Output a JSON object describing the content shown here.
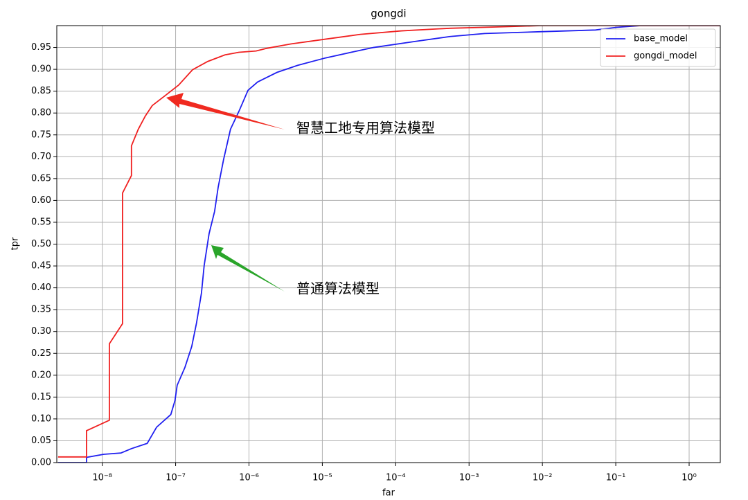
{
  "chart_data": {
    "type": "line",
    "title": "gongdi",
    "x_label": "far",
    "y_label": "tpr",
    "xscale": "log",
    "grid": true,
    "legend": "upper right",
    "xlim": [
      2.4e-09,
      2.66
    ],
    "ylim": [
      0,
      1.0
    ],
    "xticks": [
      {
        "value": 1e-08,
        "label": "10⁻⁸"
      },
      {
        "value": 1e-07,
        "label": "10⁻⁷"
      },
      {
        "value": 1e-06,
        "label": "10⁻⁶"
      },
      {
        "value": 1e-05,
        "label": "10⁻⁵"
      },
      {
        "value": 0.0001,
        "label": "10⁻⁴"
      },
      {
        "value": 0.001,
        "label": "10⁻³"
      },
      {
        "value": 0.01,
        "label": "10⁻²"
      },
      {
        "value": 0.1,
        "label": "10⁻¹"
      },
      {
        "value": 1,
        "label": "10⁰"
      }
    ],
    "yticks": [
      {
        "value": 0,
        "label": "0.00"
      },
      0.05,
      {
        "value": 0.1,
        "label": "0.10"
      },
      0.15,
      {
        "value": 0.2,
        "label": "0.20"
      },
      0.25,
      {
        "value": 0.3,
        "label": "0.30"
      },
      0.35,
      {
        "value": 0.4,
        "label": "0.40"
      },
      0.45,
      {
        "value": 0.5,
        "label": "0.50"
      },
      0.55,
      {
        "value": 0.6,
        "label": "0.60"
      },
      0.65,
      {
        "value": 0.7,
        "label": "0.70"
      },
      0.75,
      {
        "value": 0.8,
        "label": "0.80"
      },
      0.85,
      {
        "value": 0.9,
        "label": "0.90"
      },
      0.95
    ],
    "series": [
      {
        "name": "base_model",
        "color": "#1f1ff0",
        "x": [
          2.5e-09,
          6.1e-09,
          6.1e-09,
          1.05e-08,
          1.8e-08,
          2.5e-08,
          4.1e-08,
          5.5e-08,
          8.6e-08,
          9.8e-08,
          1.05e-07,
          1.34e-07,
          1.66e-07,
          1.93e-07,
          2.25e-07,
          2.45e-07,
          2.86e-07,
          3.4e-07,
          3.8e-07,
          4.5e-07,
          5.6e-07,
          7.3e-07,
          9.7e-07,
          1.31e-06,
          2.41e-06,
          4.6e-06,
          1.1e-05,
          2.63e-05,
          5e-05,
          0.000186,
          0.00055,
          0.00164,
          0.0093,
          0.053,
          0.102,
          0.218,
          2.66
        ],
        "values": [
          0,
          0,
          0.012,
          0.019,
          0.022,
          0.032,
          0.044,
          0.081,
          0.11,
          0.142,
          0.177,
          0.218,
          0.266,
          0.32,
          0.388,
          0.451,
          0.524,
          0.575,
          0.63,
          0.693,
          0.763,
          0.804,
          0.852,
          0.871,
          0.893,
          0.909,
          0.926,
          0.94,
          0.95,
          0.964,
          0.975,
          0.982,
          0.986,
          0.99,
          0.996,
          1.0,
          1.0
        ]
      },
      {
        "name": "gongdi_model",
        "color": "#f02020",
        "x": [
          2.5e-09,
          6.1e-09,
          6.1e-09,
          1.25e-08,
          1.25e-08,
          1.89e-08,
          1.89e-08,
          2.5e-08,
          2.5e-08,
          3.1e-08,
          3.86e-08,
          4.8e-08,
          7.1e-08,
          1.1e-07,
          1.7e-07,
          2.74e-07,
          4.7e-07,
          7.3e-07,
          1.25e-06,
          1.74e-06,
          3.7e-06,
          1.1e-05,
          3.3e-05,
          0.00012,
          0.00055,
          0.0025,
          0.0093,
          2.66
        ],
        "values": [
          0.013,
          0.013,
          0.073,
          0.097,
          0.272,
          0.318,
          0.617,
          0.657,
          0.725,
          0.763,
          0.793,
          0.817,
          0.839,
          0.864,
          0.899,
          0.918,
          0.933,
          0.939,
          0.942,
          0.948,
          0.958,
          0.969,
          0.98,
          0.988,
          0.994,
          0.997,
          1.0,
          1.0
        ]
      }
    ],
    "annotations": [
      "智慧工地专用算法模型",
      "普通算法模型"
    ]
  }
}
